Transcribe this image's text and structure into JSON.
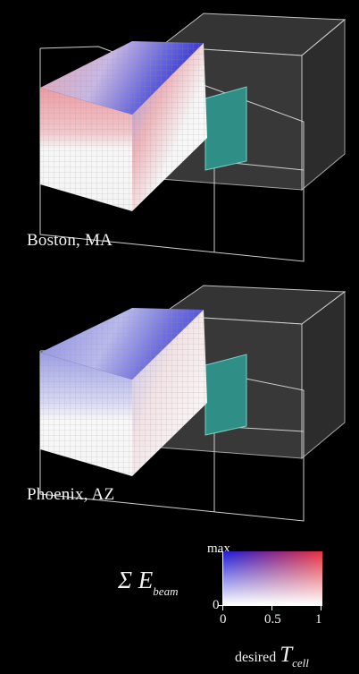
{
  "panels": [
    {
      "city": "Boston, MA"
    },
    {
      "city": "Phoenix, AZ"
    }
  ],
  "legend": {
    "max_label": "max",
    "zero_label": "0",
    "sum_label": "Σ E",
    "sum_subscript": "beam",
    "x_ticks": [
      "0",
      "0.5",
      "1"
    ],
    "x_label_prefix": "desired",
    "x_label_symbol": "T",
    "x_label_subscript": "cell",
    "colors": {
      "low_left": "#ffffff",
      "high_left": "#1f1fd8",
      "high_right": "#e8323e",
      "low_right": "#ffffff"
    }
  },
  "colors": {
    "background": "#000000",
    "cell_panel": "#2f8f86",
    "box_outline": "#d8d8d8",
    "shell_fill": "#5a5a5a"
  }
}
